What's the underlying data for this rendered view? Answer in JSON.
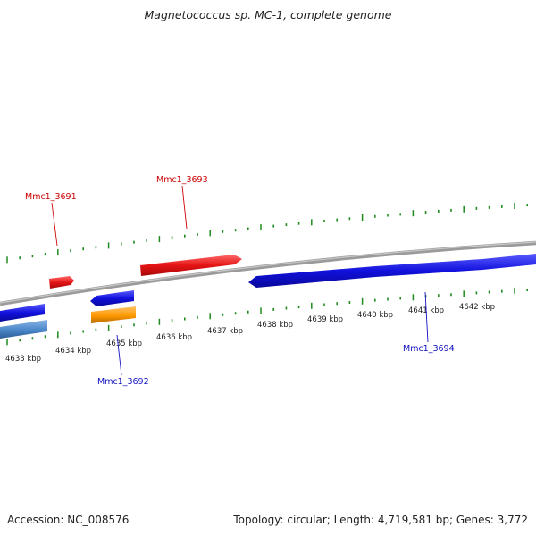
{
  "title": "Magnetococcus sp. MC-1, complete genome",
  "footer": {
    "accession": "Accession: NC_008576",
    "summary": "Topology: circular; Length: 4,719,581 bp; Genes: 3,772"
  },
  "colors": {
    "backbone": "#8c8c8c",
    "tick": "#1f8a1f",
    "forward_gene": "#e51515",
    "reverse_gene": "#1111dd",
    "rna_gene": "#ff9900",
    "other_gene": "#4a86c8",
    "forward_label": "#cc0000",
    "reverse_label": "#1010c0"
  },
  "scale_labels": [
    "4633 kbp",
    "4634 kbp",
    "4635 kbp",
    "4636 kbp",
    "4637 kbp",
    "4638 kbp",
    "4639 kbp",
    "4640 kbp",
    "4641 kbp",
    "4642 kbp"
  ],
  "gene_labels": {
    "mmc1_3691": "Mmc1_3691",
    "mmc1_3692": "Mmc1_3692",
    "mmc1_3693": "Mmc1_3693",
    "mmc1_3694": "Mmc1_3694"
  }
}
